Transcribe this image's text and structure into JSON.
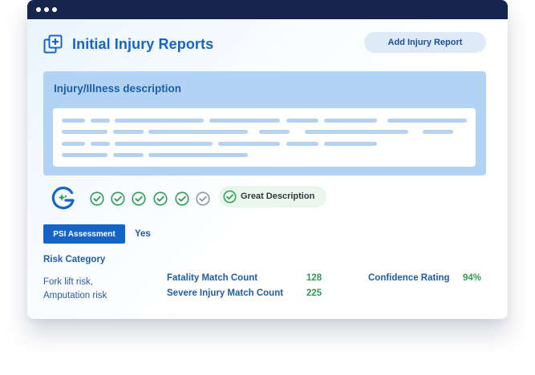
{
  "header": {
    "title": "Initial Injury Reports",
    "add_button_label": "Add Injury Report"
  },
  "description": {
    "title": "Injury/Illness description"
  },
  "quality": {
    "badge_label": "Great Description",
    "checks": [
      "passed",
      "passed",
      "passed",
      "passed",
      "passed",
      "pending"
    ]
  },
  "psi": {
    "button_label": "PSI Assessment",
    "value": "Yes"
  },
  "risk": {
    "label": "Risk Category",
    "value_line1": "Fork lift risk,",
    "value_line2": "Amputation risk"
  },
  "metrics": {
    "fatality_label": "Fatality Match Count",
    "fatality_value": "128",
    "severe_label": "Severe Injury Match Count",
    "severe_value": "225",
    "confidence_label": "Confidence Rating",
    "confidence_value": "94%"
  },
  "colors": {
    "accent": "#1565c8",
    "titlebar": "#15254d",
    "success": "#2e9d52",
    "panel": "#b3d3f5"
  },
  "icons": {
    "header": "add-document-icon",
    "logo": "sparkle-g-logo-icon",
    "check": "check-circle-icon"
  }
}
